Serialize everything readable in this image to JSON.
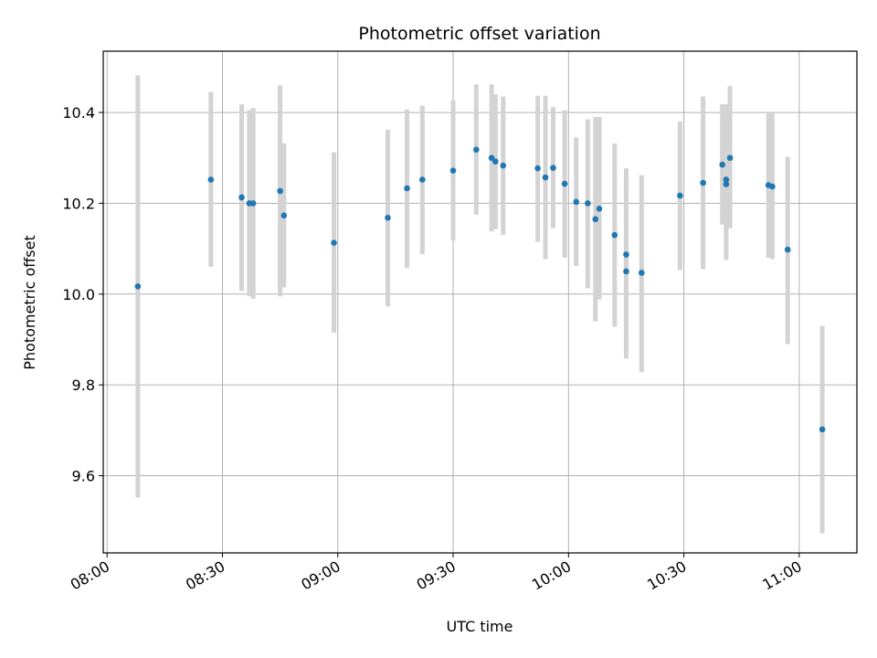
{
  "chart_data": {
    "type": "scatter",
    "title": "Photometric offset variation",
    "xlabel": "UTC time",
    "ylabel": "Photometric offset",
    "x_ticks": [
      "08:00",
      "08:30",
      "09:00",
      "09:30",
      "10:00",
      "10:30",
      "11:00"
    ],
    "y_ticks": [
      "9.6",
      "9.8",
      "10.0",
      "10.2",
      "10.4"
    ],
    "xlim": [
      "07:59",
      "11:15"
    ],
    "ylim": [
      9.43,
      10.535
    ],
    "grid": true,
    "marker_color": "#1f77b4",
    "errorbar_color": "#d3d3d3",
    "points": [
      {
        "t": "08:08",
        "y": 10.017,
        "lo": 9.552,
        "hi": 10.482
      },
      {
        "t": "08:27",
        "y": 10.252,
        "lo": 10.06,
        "hi": 10.445
      },
      {
        "t": "08:35",
        "y": 10.213,
        "lo": 10.007,
        "hi": 10.418
      },
      {
        "t": "08:37",
        "y": 10.2,
        "lo": 9.995,
        "hi": 10.405
      },
      {
        "t": "08:38",
        "y": 10.2,
        "lo": 9.99,
        "hi": 10.41
      },
      {
        "t": "08:45",
        "y": 10.227,
        "lo": 9.995,
        "hi": 10.46
      },
      {
        "t": "08:46",
        "y": 10.173,
        "lo": 10.015,
        "hi": 10.332
      },
      {
        "t": "08:59",
        "y": 10.113,
        "lo": 9.915,
        "hi": 10.312
      },
      {
        "t": "09:13",
        "y": 10.168,
        "lo": 9.973,
        "hi": 10.362
      },
      {
        "t": "09:18",
        "y": 10.233,
        "lo": 10.058,
        "hi": 10.407
      },
      {
        "t": "09:22",
        "y": 10.252,
        "lo": 10.088,
        "hi": 10.415
      },
      {
        "t": "09:30",
        "y": 10.272,
        "lo": 10.118,
        "hi": 10.427
      },
      {
        "t": "09:36",
        "y": 10.318,
        "lo": 10.175,
        "hi": 10.462
      },
      {
        "t": "09:40",
        "y": 10.3,
        "lo": 10.138,
        "hi": 10.462
      },
      {
        "t": "09:41",
        "y": 10.292,
        "lo": 10.143,
        "hi": 10.44
      },
      {
        "t": "09:43",
        "y": 10.283,
        "lo": 10.13,
        "hi": 10.435
      },
      {
        "t": "09:52",
        "y": 10.277,
        "lo": 10.115,
        "hi": 10.437
      },
      {
        "t": "09:54",
        "y": 10.257,
        "lo": 10.077,
        "hi": 10.437
      },
      {
        "t": "09:56",
        "y": 10.278,
        "lo": 10.145,
        "hi": 10.412
      },
      {
        "t": "09:59",
        "y": 10.243,
        "lo": 10.08,
        "hi": 10.405
      },
      {
        "t": "10:02",
        "y": 10.203,
        "lo": 10.062,
        "hi": 10.345
      },
      {
        "t": "10:05",
        "y": 10.2,
        "lo": 10.013,
        "hi": 10.385
      },
      {
        "t": "10:07",
        "y": 10.165,
        "lo": 9.94,
        "hi": 10.39
      },
      {
        "t": "10:08",
        "y": 10.188,
        "lo": 9.988,
        "hi": 10.39
      },
      {
        "t": "10:12",
        "y": 10.13,
        "lo": 9.928,
        "hi": 10.332
      },
      {
        "t": "10:15",
        "y": 10.087,
        "lo": 9.895,
        "hi": 10.277
      },
      {
        "t": "10:15",
        "y": 10.05,
        "lo": 9.858,
        "hi": 10.242
      },
      {
        "t": "10:19",
        "y": 10.047,
        "lo": 9.828,
        "hi": 10.262
      },
      {
        "t": "10:29",
        "y": 10.217,
        "lo": 10.053,
        "hi": 10.38
      },
      {
        "t": "10:35",
        "y": 10.245,
        "lo": 10.055,
        "hi": 10.435
      },
      {
        "t": "10:40",
        "y": 10.285,
        "lo": 10.153,
        "hi": 10.418
      },
      {
        "t": "10:41",
        "y": 10.242,
        "lo": 10.075,
        "hi": 10.418
      },
      {
        "t": "10:41",
        "y": 10.252,
        "lo": 10.09,
        "hi": 10.418
      },
      {
        "t": "10:42",
        "y": 10.3,
        "lo": 10.145,
        "hi": 10.458
      },
      {
        "t": "10:52",
        "y": 10.24,
        "lo": 10.08,
        "hi": 10.398
      },
      {
        "t": "10:53",
        "y": 10.237,
        "lo": 10.077,
        "hi": 10.398
      },
      {
        "t": "10:57",
        "y": 10.098,
        "lo": 9.89,
        "hi": 10.302
      },
      {
        "t": "11:06",
        "y": 9.702,
        "lo": 9.473,
        "hi": 9.93
      }
    ]
  }
}
